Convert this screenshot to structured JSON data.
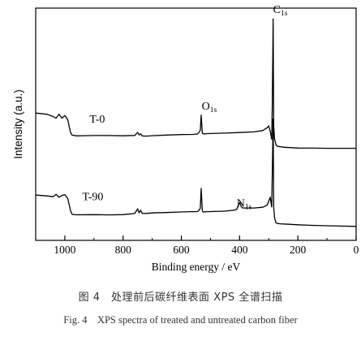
{
  "chart_data": {
    "type": "line",
    "xlabel": "Binding energy / eV",
    "ylabel": "Intensity (a.u.)",
    "xlim": [
      1100,
      0
    ],
    "x_ticks": [
      1000,
      800,
      600,
      400,
      200,
      0
    ],
    "y_ticks_shown": false,
    "series": [
      {
        "name": "T-0",
        "x": [
          1100,
          1060,
          1040,
          1030,
          1020,
          1010,
          1000,
          990,
          985,
          980,
          975,
          960,
          900,
          850,
          800,
          760,
          750,
          745,
          740,
          735,
          720,
          700,
          650,
          600,
          560,
          545,
          540,
          535,
          532,
          528,
          525,
          510,
          450,
          400,
          350,
          320,
          305,
          300,
          295,
          290,
          288,
          285,
          283,
          280,
          275,
          270,
          260,
          250,
          230,
          200,
          150,
          100,
          50,
          0
        ],
        "values": [
          46.5,
          45.8,
          44.5,
          43.5,
          46.0,
          43.5,
          45.0,
          42.5,
          38.0,
          34.0,
          32.5,
          32.0,
          32.2,
          32.3,
          32.2,
          32.5,
          34.5,
          33.0,
          33.8,
          32.5,
          32.3,
          32.5,
          32.8,
          33.0,
          33.0,
          33.2,
          34.0,
          35.5,
          45.0,
          34.0,
          33.5,
          33.8,
          34.2,
          34.6,
          35.0,
          35.8,
          37.5,
          38.5,
          35.0,
          30.0,
          50.0,
          105.0,
          38.0,
          30.0,
          26.5,
          25.8,
          25.6,
          25.4,
          25.2,
          24.9,
          24.8,
          24.6,
          24.5,
          24.4
        ]
      },
      {
        "name": "T-90",
        "x": [
          1100,
          1060,
          1040,
          1030,
          1020,
          1010,
          1000,
          990,
          985,
          980,
          975,
          960,
          900,
          850,
          800,
          760,
          750,
          745,
          740,
          735,
          720,
          700,
          650,
          600,
          560,
          545,
          540,
          535,
          532,
          528,
          525,
          510,
          450,
          420,
          410,
          405,
          400,
          395,
          390,
          350,
          320,
          305,
          300,
          295,
          290,
          288,
          285,
          283,
          280,
          275,
          270,
          260,
          250,
          230,
          200,
          150,
          100,
          50,
          0
        ],
        "values": [
          -4.5,
          -5.0,
          -5.5,
          -4.0,
          -6.0,
          -5.0,
          -4.5,
          -7.0,
          -11.0,
          -15.0,
          -17.0,
          -17.2,
          -17.0,
          -17.0,
          -16.8,
          -16.0,
          -13.0,
          -15.5,
          -14.0,
          -16.0,
          -16.2,
          -16.0,
          -15.8,
          -15.5,
          -15.3,
          -15.2,
          -14.5,
          -13.0,
          -0.5,
          -14.5,
          -15.0,
          -14.8,
          -14.5,
          -14.0,
          -13.5,
          -11.5,
          -9.5,
          -12.0,
          -13.0,
          -13.0,
          -12.5,
          -11.0,
          -8.5,
          -6.0,
          -12.0,
          8.0,
          43.0,
          -12.0,
          -19.0,
          -22.0,
          -22.5,
          -22.8,
          -23.0,
          -23.2,
          -23.5,
          -23.8,
          -24.0,
          -24.1,
          -24.2
        ]
      }
    ],
    "annotations": [
      {
        "main": "T-0",
        "sub": "",
        "x": 915,
        "y": 40.5
      },
      {
        "main": "O",
        "sub": "1s",
        "x": 530,
        "y": 48.5
      },
      {
        "main": "C",
        "sub": "1s",
        "x": 285,
        "y": 109
      },
      {
        "main": "T-90",
        "sub": "",
        "x": 940,
        "y": -8
      },
      {
        "main": "N",
        "sub": "1s",
        "x": 410,
        "y": -12
      },
      {
        "main": "",
        "sub": "",
        "x": 0,
        "y": 0
      }
    ],
    "ylim": [
      -33,
      112
    ],
    "grid": false,
    "legend": "none"
  },
  "caption": {
    "zh": "图 4　处理前后碳纤维表面 XPS 全谱扫描",
    "en": "Fig. 4　XPS spectra of treated and untreated carbon fiber"
  }
}
